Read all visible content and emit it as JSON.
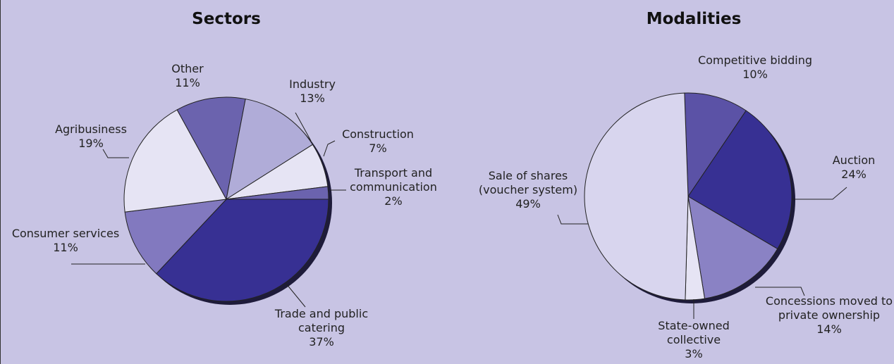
{
  "chart_data": [
    {
      "type": "pie",
      "title": "Sectors",
      "categories": [
        "Trade and public catering",
        "Consumer services",
        "Agribusiness",
        "Other",
        "Industry",
        "Construction",
        "Transport and communication"
      ],
      "values": [
        37,
        11,
        19,
        11,
        13,
        7,
        2
      ],
      "value_labels": [
        "37%",
        "11%",
        "19%",
        "11%",
        "13%",
        "7%",
        "2%"
      ],
      "colors": [
        "#373093",
        "#8279bf",
        "#e6e4f4",
        "#6b63ae",
        "#b0acd8",
        "#e6e4f4",
        "#6b63ae"
      ]
    },
    {
      "type": "pie",
      "title": "Modalities",
      "categories": [
        "Competitive bidding",
        "Auction",
        "Concessions moved to private ownership",
        "State-owned collective",
        "Sale of shares (voucher system)"
      ],
      "values": [
        10,
        24,
        14,
        3,
        49
      ],
      "value_labels": [
        "10%",
        "24%",
        "14%",
        "3%",
        "49%"
      ],
      "colors": [
        "#5b52a6",
        "#373093",
        "#8a82c4",
        "#e6e4f4",
        "#d8d5ee"
      ]
    }
  ]
}
